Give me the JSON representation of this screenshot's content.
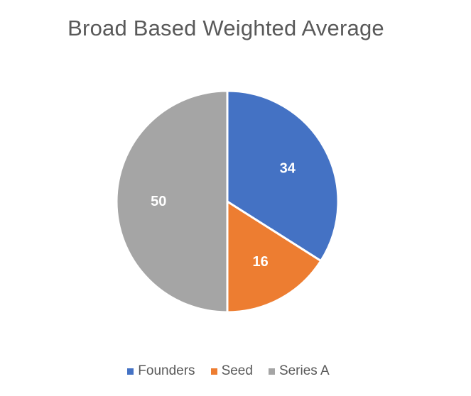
{
  "chart_data": {
    "type": "pie",
    "title": "Broad Based Weighted Average",
    "categories": [
      "Founders",
      "Seed",
      "Series A"
    ],
    "values": [
      34,
      16,
      50
    ],
    "colors": [
      "#4472C4",
      "#ED7D31",
      "#A5A5A5"
    ],
    "data_labels": [
      "34",
      "16",
      "50"
    ],
    "legend_position": "bottom",
    "start_angle_deg": 0,
    "direction": "clockwise"
  }
}
